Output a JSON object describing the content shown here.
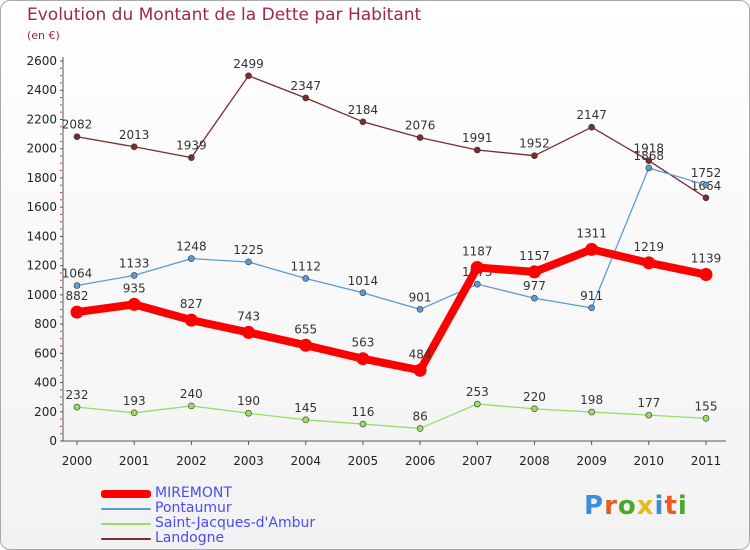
{
  "title": "Evolution du Montant de la Dette par Habitant",
  "subtitle": "(en €)",
  "logo": {
    "text": "Proxiti",
    "colors": [
      "#3c8fd6",
      "#e85a1e",
      "#4aa82c",
      "#e8b81e",
      "#3c8fd6",
      "#e85a1e",
      "#4aa82c"
    ]
  },
  "chart_data": {
    "type": "line",
    "title": "Evolution du Montant de la Dette par Habitant",
    "ylabel": "(en €)",
    "xlabel": "",
    "x": [
      "2000",
      "2001",
      "2002",
      "2003",
      "2004",
      "2005",
      "2006",
      "2007",
      "2008",
      "2009",
      "2010",
      "2011"
    ],
    "ylim": [
      0,
      2600
    ],
    "yticks": [
      0,
      200,
      400,
      600,
      800,
      1000,
      1200,
      1400,
      1600,
      1800,
      2000,
      2200,
      2400,
      2600
    ],
    "grid": false,
    "legend_position": "bottom-left",
    "series": [
      {
        "name": "MIREMONT",
        "color": "#ff0000",
        "values": [
          882,
          935,
          827,
          743,
          655,
          563,
          484,
          1187,
          1157,
          1311,
          1219,
          1139
        ]
      },
      {
        "name": "Pontaumur",
        "color": "#5b9bd5",
        "values": [
          1064,
          1133,
          1248,
          1225,
          1112,
          1014,
          901,
          1073,
          977,
          911,
          1868,
          1752
        ]
      },
      {
        "name": "Saint-Jacques-d'Ambur",
        "color": "#99dd66",
        "values": [
          232,
          193,
          240,
          190,
          145,
          116,
          86,
          253,
          220,
          198,
          177,
          155
        ]
      },
      {
        "name": "Landogne",
        "color": "#7a2d2d",
        "values": [
          2082,
          2013,
          1939,
          2499,
          2347,
          2184,
          2076,
          1991,
          1952,
          2147,
          1918,
          1664
        ]
      }
    ]
  }
}
